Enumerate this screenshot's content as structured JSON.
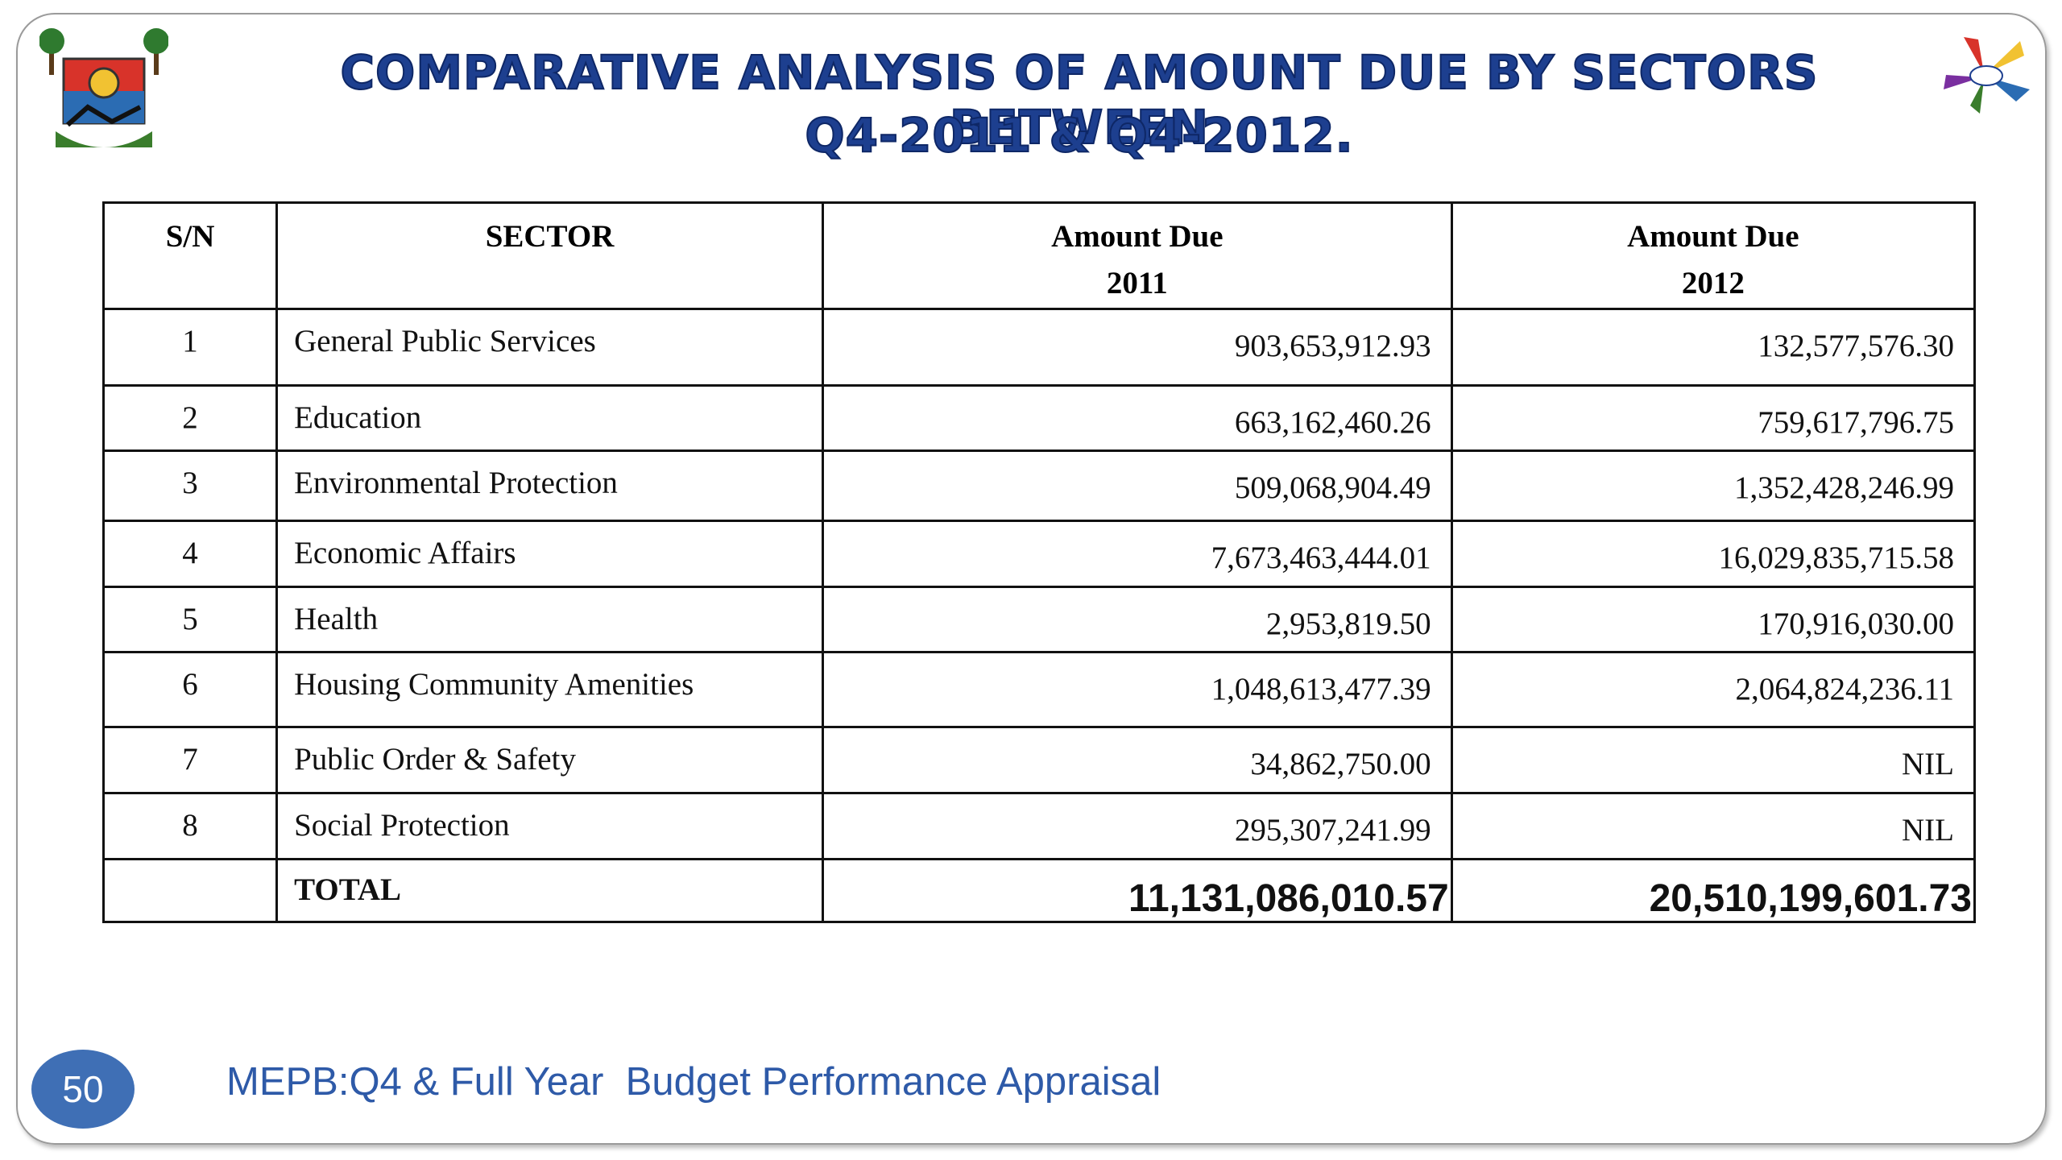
{
  "header": {
    "title_lines": [
      "COMPARATIVE ANALYSIS OF AMOUNT DUE BY SECTORS BETWEEN",
      "Q4-2011 & Q4-2012."
    ]
  },
  "table": {
    "columns": [
      [
        "S/N"
      ],
      [
        "SECTOR"
      ],
      [
        "Amount Due",
        "2011"
      ],
      [
        "Amount Due",
        "2012"
      ]
    ],
    "rows": [
      [
        "1",
        "General Public Services",
        "903,653,912.93",
        "132,577,576.30"
      ],
      [
        "2",
        "Education",
        "663,162,460.26",
        "759,617,796.75"
      ],
      [
        "3",
        "Environmental Protection",
        "509,068,904.49",
        "1,352,428,246.99"
      ],
      [
        "4",
        "Economic Affairs",
        "7,673,463,444.01",
        "16,029,835,715.58"
      ],
      [
        "5",
        "Health",
        "2,953,819.50",
        "170,916,030.00"
      ],
      [
        "6",
        "Housing Community Amenities",
        "1,048,613,477.39",
        "2,064,824,236.11"
      ],
      [
        "7",
        "Public Order & Safety",
        "34,862,750.00",
        "NIL"
      ],
      [
        "8",
        "Social Protection",
        "295,307,241.99",
        "NIL"
      ]
    ],
    "total": {
      "label": "TOTAL",
      "values": [
        "11,131,086,010.57",
        "20,510,199,601.73"
      ]
    }
  },
  "footer": {
    "page_number": "50",
    "text": "MEPB:Q4 & Full Year  Budget Performance Appraisal"
  }
}
